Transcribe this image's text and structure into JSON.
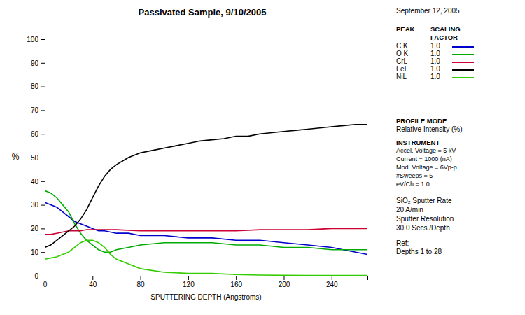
{
  "chart_data": {
    "type": "line",
    "title": "Passivated Sample,  9/10/2005",
    "x_label": "SPUTTERING     DEPTH (Angstroms)",
    "y_label": "%",
    "xlim": [
      0,
      270
    ],
    "ylim": [
      0,
      100
    ],
    "xticks": [
      0,
      40,
      80,
      120,
      160,
      200,
      240
    ],
    "yticks": [
      0,
      10,
      20,
      30,
      40,
      50,
      60,
      70,
      80,
      90,
      100
    ],
    "series": [
      {
        "name": "C K",
        "scaling_factor": "1.0",
        "color": "#0000cc",
        "x": [
          0,
          5,
          10,
          15,
          20,
          25,
          30,
          35,
          40,
          45,
          50,
          60,
          70,
          80,
          100,
          120,
          140,
          160,
          180,
          200,
          220,
          240,
          260,
          270
        ],
        "values": [
          31,
          30,
          29,
          27,
          25,
          23,
          22,
          21,
          20,
          19,
          19,
          18,
          18,
          17,
          17,
          16,
          16,
          15,
          15,
          14,
          13,
          12,
          10,
          9
        ]
      },
      {
        "name": "O K",
        "scaling_factor": "1.0",
        "color": "#00aa00",
        "x": [
          0,
          5,
          10,
          15,
          20,
          25,
          30,
          35,
          40,
          45,
          50,
          55,
          60,
          70,
          80,
          100,
          120,
          140,
          160,
          180,
          200,
          220,
          240,
          260,
          270
        ],
        "values": [
          36,
          35,
          33,
          30,
          27,
          22,
          18,
          15,
          13,
          11,
          10,
          10,
          11,
          12,
          13,
          14,
          14,
          14,
          13,
          13,
          12,
          12,
          11,
          11,
          11
        ]
      },
      {
        "name": "CrL",
        "scaling_factor": "1.0",
        "color": "#cc0033",
        "x": [
          0,
          5,
          10,
          15,
          20,
          25,
          30,
          35,
          40,
          45,
          50,
          60,
          80,
          100,
          120,
          140,
          160,
          180,
          200,
          220,
          240,
          260,
          270
        ],
        "values": [
          17.5,
          17.5,
          18.0,
          18.5,
          19.0,
          19.0,
          19.0,
          19.5,
          19.5,
          19.5,
          19.5,
          19.5,
          19.0,
          19.0,
          19.0,
          19.0,
          19.0,
          19.5,
          19.5,
          19.5,
          20.0,
          20.0,
          20.0
        ]
      },
      {
        "name": "FeL",
        "scaling_factor": "1.0",
        "color": "#000000",
        "x": [
          0,
          5,
          10,
          15,
          20,
          25,
          30,
          35,
          40,
          45,
          50,
          55,
          60,
          70,
          80,
          90,
          100,
          110,
          120,
          130,
          140,
          150,
          160,
          170,
          180,
          190,
          200,
          210,
          220,
          230,
          240,
          250,
          260,
          270
        ],
        "values": [
          12,
          13,
          15,
          17,
          19,
          21,
          24,
          28,
          33,
          38,
          42,
          45,
          47,
          50,
          52,
          53,
          54,
          55,
          56,
          57,
          57.5,
          58,
          59,
          59,
          60,
          60.5,
          61,
          61.5,
          62,
          62.5,
          63,
          63.5,
          64,
          64
        ]
      },
      {
        "name": "NiL",
        "scaling_factor": "1.0",
        "color": "#33cc00",
        "x": [
          0,
          5,
          10,
          15,
          20,
          25,
          30,
          35,
          40,
          45,
          50,
          55,
          60,
          70,
          80,
          100,
          120,
          140,
          160,
          180,
          200,
          220,
          240,
          260,
          270
        ],
        "values": [
          7,
          7.5,
          8,
          9,
          10,
          12,
          14,
          15,
          15,
          14,
          12,
          9,
          7,
          5,
          3,
          1.5,
          1,
          1,
          0.5,
          0.3,
          0.2,
          0.1,
          0.1,
          0.1,
          0.1
        ]
      }
    ],
    "annotations": [
      "September 12, 2005",
      "PEAK",
      "SCALING",
      "FACTOR",
      "PROFILE MODE",
      "Relative Intensity (%)",
      "INSTRUMENT",
      "Accel. Voltage = 5 kV",
      "Current = 1000 (nA)",
      "Mod. Voltage = 6Vp-p",
      "#Sweeps = 5",
      "eV/Ch = 1.0",
      "SiO₂ Sputter Rate",
      "20 A/min",
      "Sputter Resolution",
      "30.0 Secs./Depth",
      "Ref:",
      "Depths  1 to 28"
    ]
  }
}
